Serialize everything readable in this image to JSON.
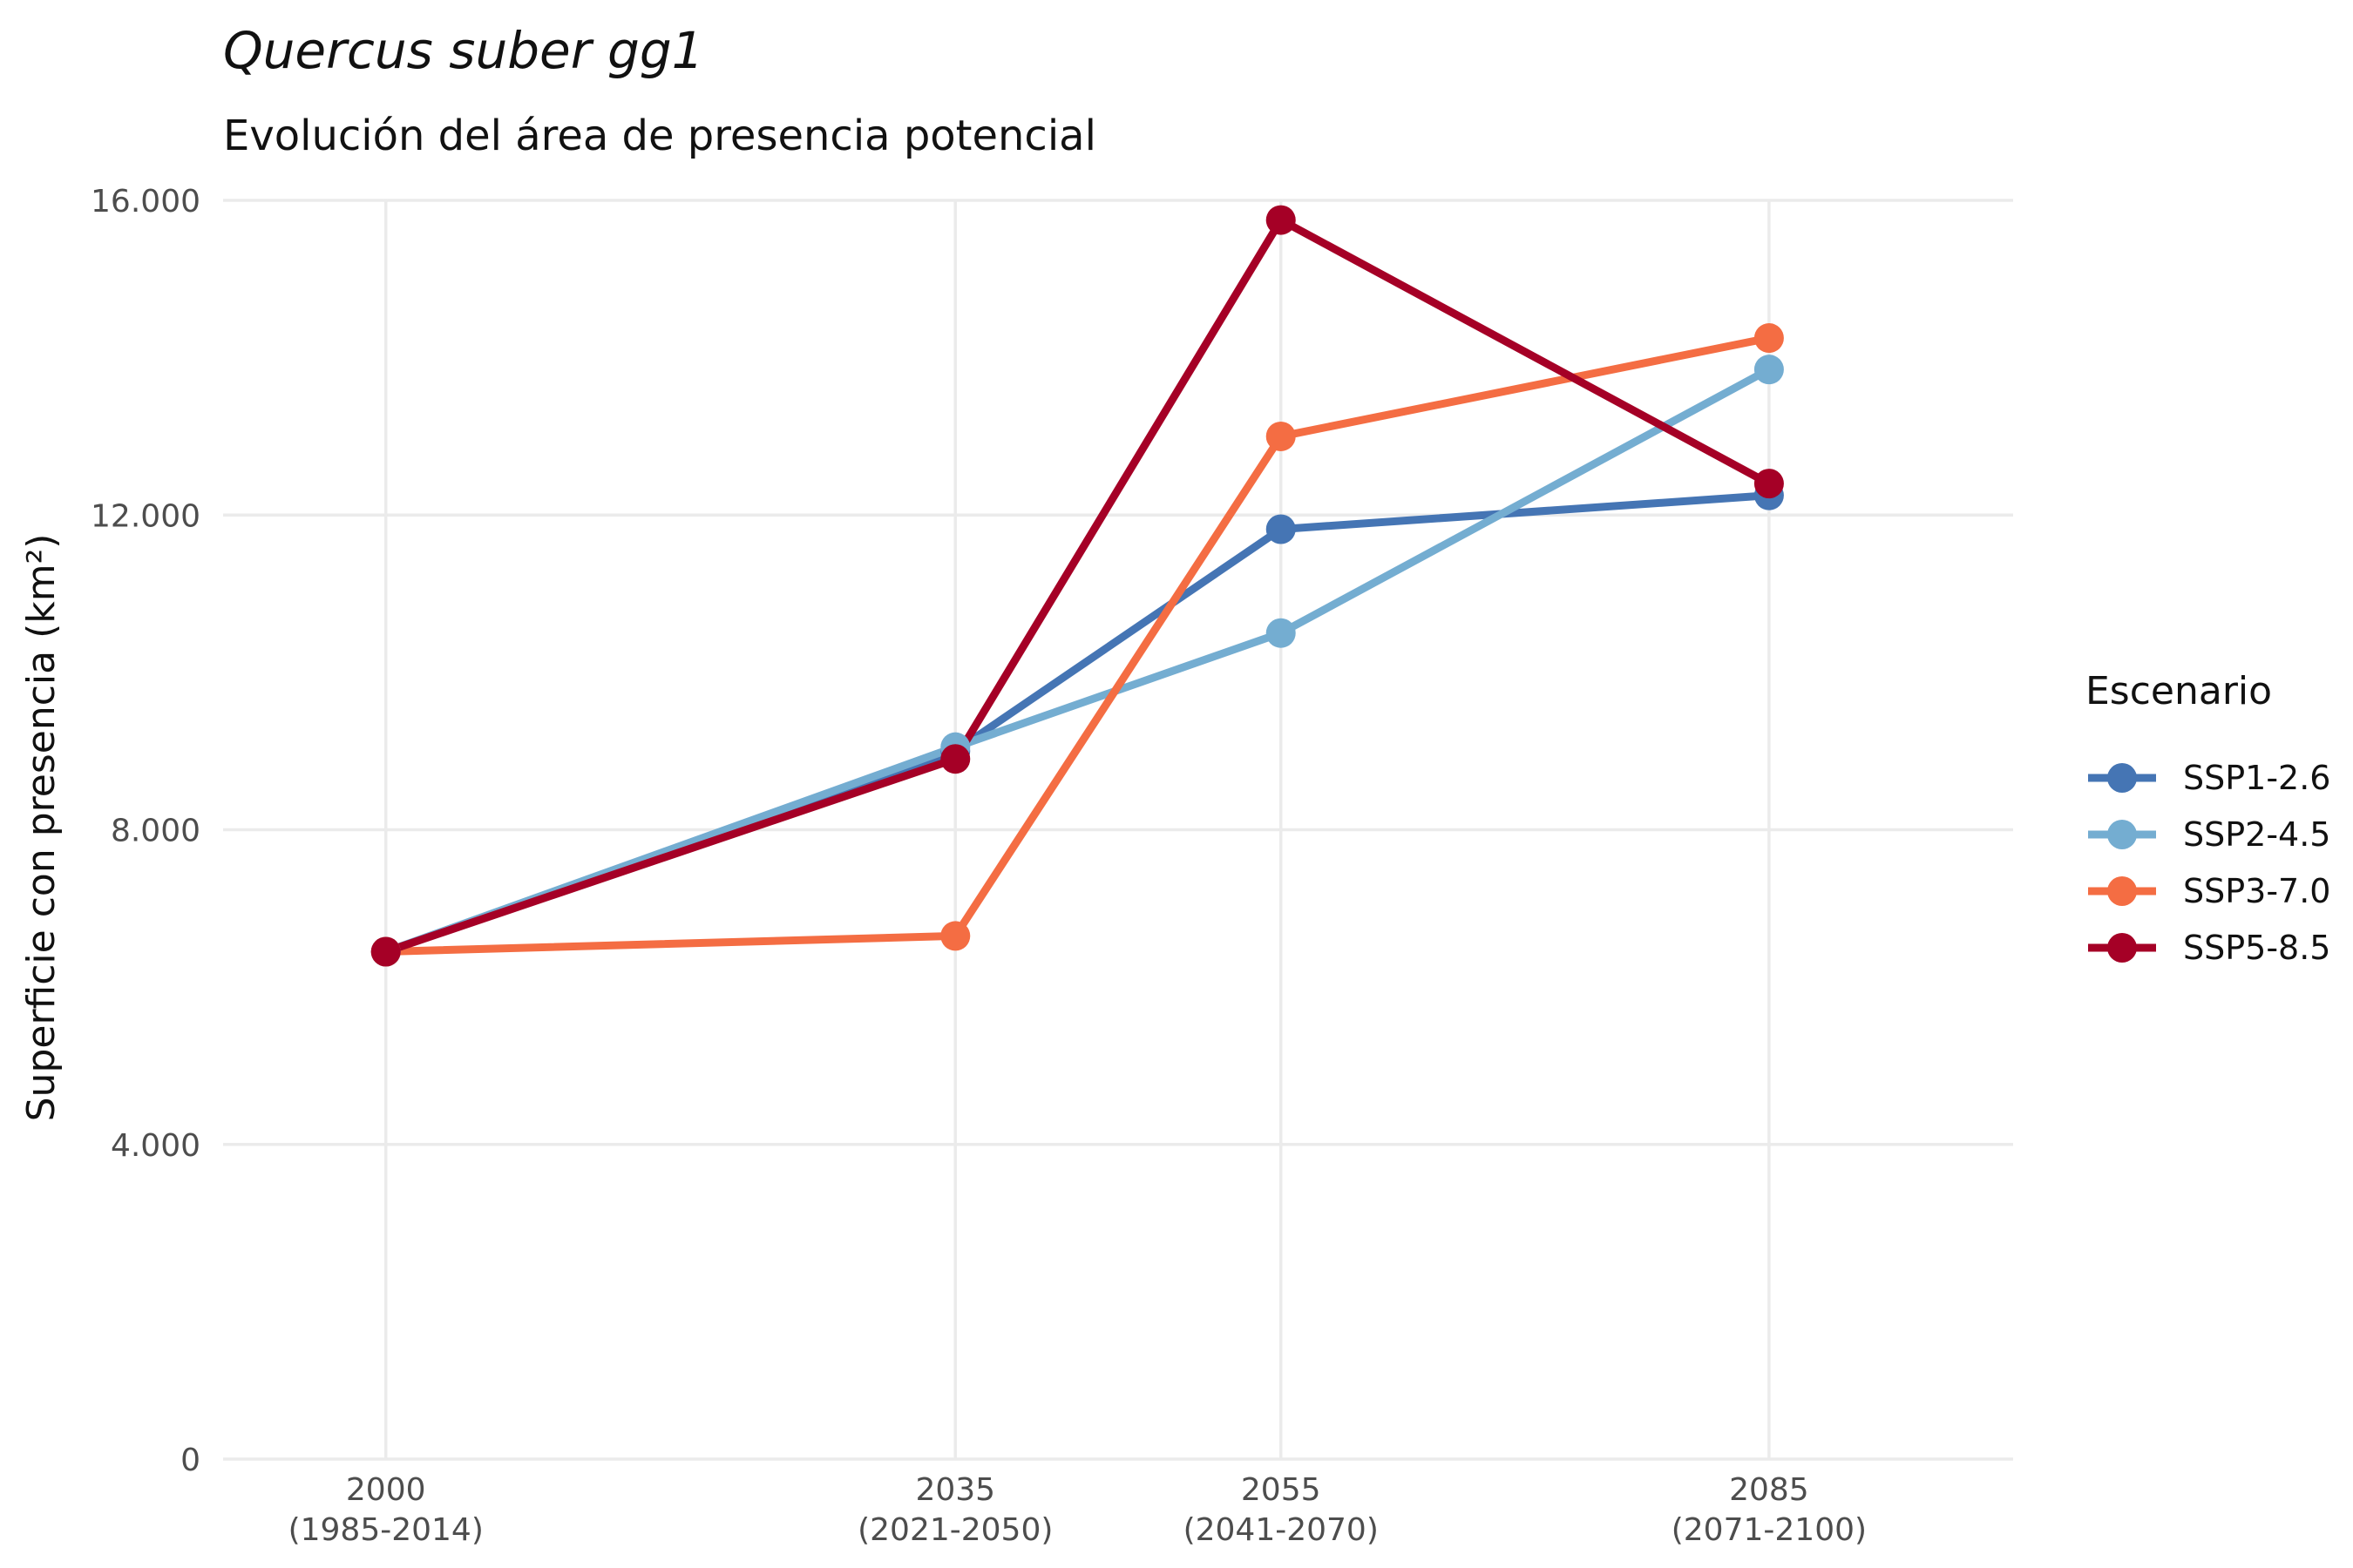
{
  "chart_data": {
    "type": "line",
    "title": "Quercus suber gg1",
    "subtitle": "Evolución del área de presencia potencial",
    "ylabel": "Superficie con presencia (km²)",
    "xlabel": "",
    "x": [
      2000,
      2035,
      2055,
      2085
    ],
    "x_tick_labels": [
      [
        "2000",
        "(1985-2014)"
      ],
      [
        "2035",
        "(2021-2050)"
      ],
      [
        "2055",
        "(2041-2070)"
      ],
      [
        "2085",
        "(2071-2100)"
      ]
    ],
    "xlim": [
      1990,
      2100
    ],
    "ylim": [
      0,
      16000
    ],
    "y_ticks": [
      0,
      4000,
      8000,
      12000,
      16000
    ],
    "y_tick_labels": [
      "0",
      "4.000",
      "8.000",
      "12.000",
      "16.000"
    ],
    "grid": true,
    "legend_title": "Escenario",
    "legend_position": "right",
    "series": [
      {
        "name": "SSP1-2.6",
        "color": "#4575b4",
        "values": [
          6450,
          9000,
          11820,
          12250
        ]
      },
      {
        "name": "SSP2-4.5",
        "color": "#74add1",
        "values": [
          6450,
          9050,
          10500,
          13850
        ]
      },
      {
        "name": "SSP3-7.0",
        "color": "#f46d43",
        "values": [
          6450,
          6650,
          13000,
          14250
        ]
      },
      {
        "name": "SSP5-8.5",
        "color": "#a50026",
        "values": [
          6450,
          8900,
          15750,
          12400
        ]
      }
    ]
  }
}
